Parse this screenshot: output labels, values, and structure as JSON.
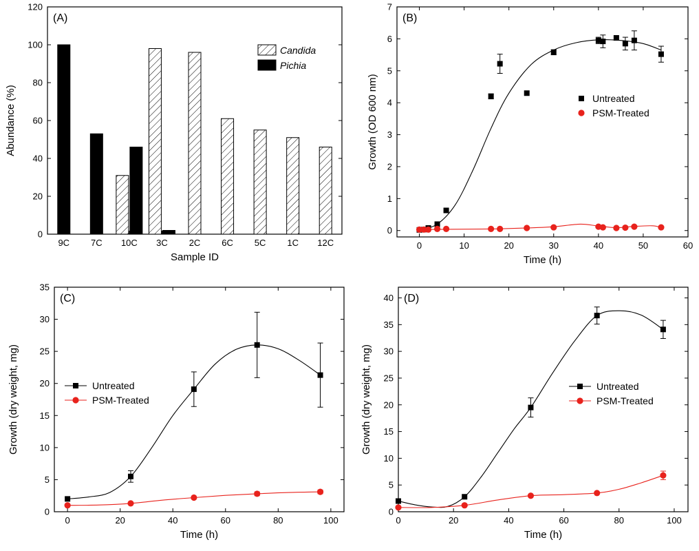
{
  "chart_data": [
    {
      "id": "A",
      "type": "bar",
      "panel_label": "(A)",
      "xlabel": "Sample ID",
      "ylabel": "Abundance (%)",
      "ylim": [
        0,
        120
      ],
      "yticks": [
        0,
        20,
        40,
        60,
        80,
        100,
        120
      ],
      "categories": [
        "9C",
        "7C",
        "10C",
        "3C",
        "2C",
        "6C",
        "5C",
        "1C",
        "12C"
      ],
      "series": [
        {
          "name": "Candida",
          "pattern": "hatched",
          "color": "#000000",
          "values": [
            null,
            null,
            31,
            98,
            96,
            61,
            55,
            51,
            46
          ]
        },
        {
          "name": "Pichia",
          "pattern": "solid",
          "color": "#000000",
          "values": [
            100,
            53,
            46,
            2,
            null,
            null,
            null,
            null,
            null
          ]
        }
      ],
      "legend_position": "top-right"
    },
    {
      "id": "B",
      "type": "scatter",
      "panel_label": "(B)",
      "xlabel": "Time (h)",
      "ylabel": "Growth (OD 600 nm)",
      "xlim": [
        -5,
        60
      ],
      "ylim": [
        -0.2,
        7
      ],
      "xticks": [
        0,
        10,
        20,
        30,
        40,
        50,
        60
      ],
      "yticks": [
        0,
        1,
        2,
        3,
        4,
        5,
        6,
        7
      ],
      "series": [
        {
          "name": "Untreated",
          "marker": "square",
          "color": "#000000",
          "x": [
            0,
            1,
            2,
            4,
            6,
            16,
            18,
            24,
            30,
            40,
            41,
            44,
            46,
            48,
            54
          ],
          "y": [
            0.02,
            0.03,
            0.08,
            0.2,
            0.63,
            4.2,
            5.22,
            4.3,
            5.58,
            5.95,
            5.92,
            6.03,
            5.85,
            5.95,
            5.52
          ],
          "err": [
            0,
            0,
            0,
            0,
            0,
            0.08,
            0.3,
            0,
            0.08,
            0.1,
            0.2,
            0,
            0.2,
            0.3,
            0.25
          ],
          "fit": [
            [
              0,
              0.02
            ],
            [
              4,
              0.2
            ],
            [
              8,
              0.8
            ],
            [
              12,
              1.9
            ],
            [
              16,
              3.2
            ],
            [
              20,
              4.3
            ],
            [
              25,
              5.2
            ],
            [
              30,
              5.65
            ],
            [
              35,
              5.88
            ],
            [
              40,
              5.97
            ],
            [
              45,
              5.95
            ],
            [
              50,
              5.85
            ],
            [
              54,
              5.65
            ]
          ]
        },
        {
          "name": "PSM-Treated",
          "marker": "circle",
          "color": "#e8221c",
          "x": [
            0,
            1,
            2,
            4,
            6,
            16,
            18,
            24,
            30,
            40,
            41,
            44,
            46,
            48,
            54
          ],
          "y": [
            0.03,
            0.03,
            0.03,
            0.05,
            0.05,
            0.05,
            0.05,
            0.08,
            0.1,
            0.12,
            0.1,
            0.08,
            0.09,
            0.12,
            0.1
          ],
          "fit": [
            [
              0,
              0.03
            ],
            [
              6,
              0.04
            ],
            [
              16,
              0.05
            ],
            [
              24,
              0.08
            ],
            [
              30,
              0.12
            ],
            [
              36,
              0.2
            ],
            [
              40,
              0.14
            ],
            [
              44,
              0.09
            ],
            [
              48,
              0.13
            ],
            [
              52,
              0.15
            ],
            [
              54,
              0.1
            ]
          ]
        }
      ],
      "legend_position": "right"
    },
    {
      "id": "C",
      "type": "line",
      "panel_label": "(C)",
      "xlabel": "Time (h)",
      "ylabel": "Growth (dry weight, mg)",
      "xlim": [
        -5,
        105
      ],
      "ylim": [
        0,
        35
      ],
      "xticks": [
        0,
        20,
        40,
        60,
        80,
        100
      ],
      "yticks": [
        0,
        5,
        10,
        15,
        20,
        25,
        30,
        35
      ],
      "series": [
        {
          "name": "Untreated",
          "marker": "square",
          "color": "#000000",
          "x": [
            0,
            24,
            48,
            72,
            96
          ],
          "y": [
            2.0,
            5.5,
            19.1,
            26.0,
            21.3
          ],
          "err": [
            0,
            0.9,
            2.7,
            5.1,
            5.0
          ],
          "fit": [
            [
              0,
              2.0
            ],
            [
              8,
              2.3
            ],
            [
              16,
              3.0
            ],
            [
              24,
              5.5
            ],
            [
              32,
              10.0
            ],
            [
              40,
              15.0
            ],
            [
              48,
              19.1
            ],
            [
              56,
              23.0
            ],
            [
              64,
              25.3
            ],
            [
              72,
              26.0
            ],
            [
              80,
              25.4
            ],
            [
              88,
              23.6
            ],
            [
              96,
              21.3
            ]
          ]
        },
        {
          "name": "PSM-Treated",
          "marker": "circle",
          "color": "#e8221c",
          "x": [
            0,
            24,
            48,
            72,
            96
          ],
          "y": [
            1.0,
            1.3,
            2.2,
            2.8,
            3.1
          ],
          "err": [
            0,
            0,
            0,
            0.3,
            0.3
          ],
          "fit": [
            [
              0,
              1.0
            ],
            [
              12,
              1.05
            ],
            [
              24,
              1.3
            ],
            [
              36,
              1.8
            ],
            [
              48,
              2.2
            ],
            [
              60,
              2.55
            ],
            [
              72,
              2.8
            ],
            [
              84,
              3.0
            ],
            [
              96,
              3.1
            ]
          ]
        }
      ],
      "legend_position": "left"
    },
    {
      "id": "D",
      "type": "line",
      "panel_label": "(D)",
      "xlabel": "Time (h)",
      "ylabel": "Growth (dry weight, mg)",
      "xlim": [
        0,
        105
      ],
      "ylim": [
        0,
        42
      ],
      "xticks": [
        0,
        20,
        40,
        60,
        80,
        100
      ],
      "yticks": [
        0,
        5,
        10,
        15,
        20,
        25,
        30,
        35,
        40
      ],
      "series": [
        {
          "name": "Untreated",
          "marker": "square",
          "color": "#000000",
          "x": [
            0,
            24,
            48,
            72,
            96
          ],
          "y": [
            2.0,
            2.8,
            19.5,
            36.7,
            34.1
          ],
          "err": [
            0,
            0,
            1.8,
            1.6,
            1.7
          ],
          "fit": [
            [
              0,
              2.0
            ],
            [
              6,
              1.3
            ],
            [
              12,
              0.9
            ],
            [
              18,
              1.0
            ],
            [
              24,
              2.8
            ],
            [
              30,
              6.5
            ],
            [
              36,
              11.0
            ],
            [
              42,
              15.5
            ],
            [
              48,
              19.5
            ],
            [
              56,
              26.0
            ],
            [
              64,
              32.0
            ],
            [
              72,
              36.7
            ],
            [
              80,
              37.6
            ],
            [
              88,
              36.8
            ],
            [
              96,
              34.1
            ]
          ]
        },
        {
          "name": "PSM-Treated",
          "marker": "circle",
          "color": "#e8221c",
          "x": [
            0,
            24,
            48,
            72,
            96
          ],
          "y": [
            0.8,
            1.2,
            3.0,
            3.5,
            6.8
          ],
          "err": [
            0,
            0,
            0,
            0,
            0.8
          ],
          "fit": [
            [
              0,
              0.8
            ],
            [
              12,
              0.8
            ],
            [
              24,
              1.2
            ],
            [
              36,
              2.2
            ],
            [
              48,
              3.0
            ],
            [
              60,
              3.2
            ],
            [
              72,
              3.5
            ],
            [
              80,
              4.2
            ],
            [
              88,
              5.4
            ],
            [
              96,
              6.8
            ]
          ]
        }
      ],
      "legend_position": "top-right"
    }
  ]
}
